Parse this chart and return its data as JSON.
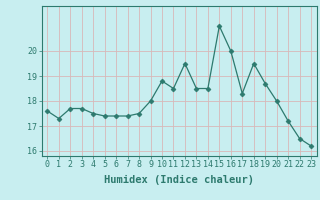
{
  "x": [
    0,
    1,
    2,
    3,
    4,
    5,
    6,
    7,
    8,
    9,
    10,
    11,
    12,
    13,
    14,
    15,
    16,
    17,
    18,
    19,
    20,
    21,
    22,
    23
  ],
  "y": [
    17.6,
    17.3,
    17.7,
    17.7,
    17.5,
    17.4,
    17.4,
    17.4,
    17.5,
    18.0,
    18.8,
    18.5,
    19.5,
    18.5,
    18.5,
    21.0,
    20.0,
    18.3,
    19.5,
    18.7,
    18.0,
    17.2,
    16.5,
    16.2
  ],
  "line_color": "#2d7a6e",
  "marker": "D",
  "marker_size": 2.5,
  "bg_color": "#c8eef0",
  "grid_color": "#d8b8b8",
  "xlabel": "Humidex (Indice chaleur)",
  "ylim": [
    15.8,
    21.8
  ],
  "xlim": [
    -0.5,
    23.5
  ],
  "yticks": [
    16,
    17,
    18,
    19,
    20
  ],
  "xticks": [
    0,
    1,
    2,
    3,
    4,
    5,
    6,
    7,
    8,
    9,
    10,
    11,
    12,
    13,
    14,
    15,
    16,
    17,
    18,
    19,
    20,
    21,
    22,
    23
  ],
  "axis_color": "#2d7a6e",
  "tick_color": "#2d7a6e",
  "label_color": "#2d7a6e",
  "font_size": 7,
  "xlabel_fontsize": 7.5
}
